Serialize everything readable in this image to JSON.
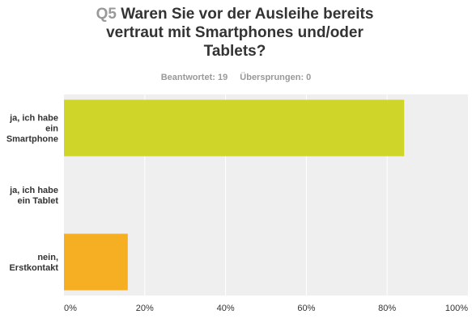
{
  "question": {
    "number": "Q5",
    "title_lines": [
      "Waren Sie vor der Ausleihe bereits",
      "vertraut mit Smartphones und/oder",
      "Tablets?"
    ]
  },
  "meta": {
    "answered": "Beantwortet: 19",
    "skipped": "Übersprungen: 0"
  },
  "colors": {
    "background": "#efefef",
    "grid": "#ffffff",
    "bars": [
      "#cfd529",
      null,
      "#f6ae22"
    ]
  },
  "chart_data": {
    "type": "bar",
    "orientation": "horizontal",
    "categories": [
      [
        "ja, ich habe",
        "ein",
        "Smartphone"
      ],
      [
        "ja, ich habe",
        "ein Tablet"
      ],
      [
        "nein,",
        "Erstkontakt"
      ]
    ],
    "values": [
      84.21,
      0,
      15.79
    ],
    "xlim": [
      0,
      100
    ],
    "x_ticks": [
      "0%",
      "20%",
      "40%",
      "60%",
      "80%",
      "100%"
    ],
    "grid": true
  }
}
